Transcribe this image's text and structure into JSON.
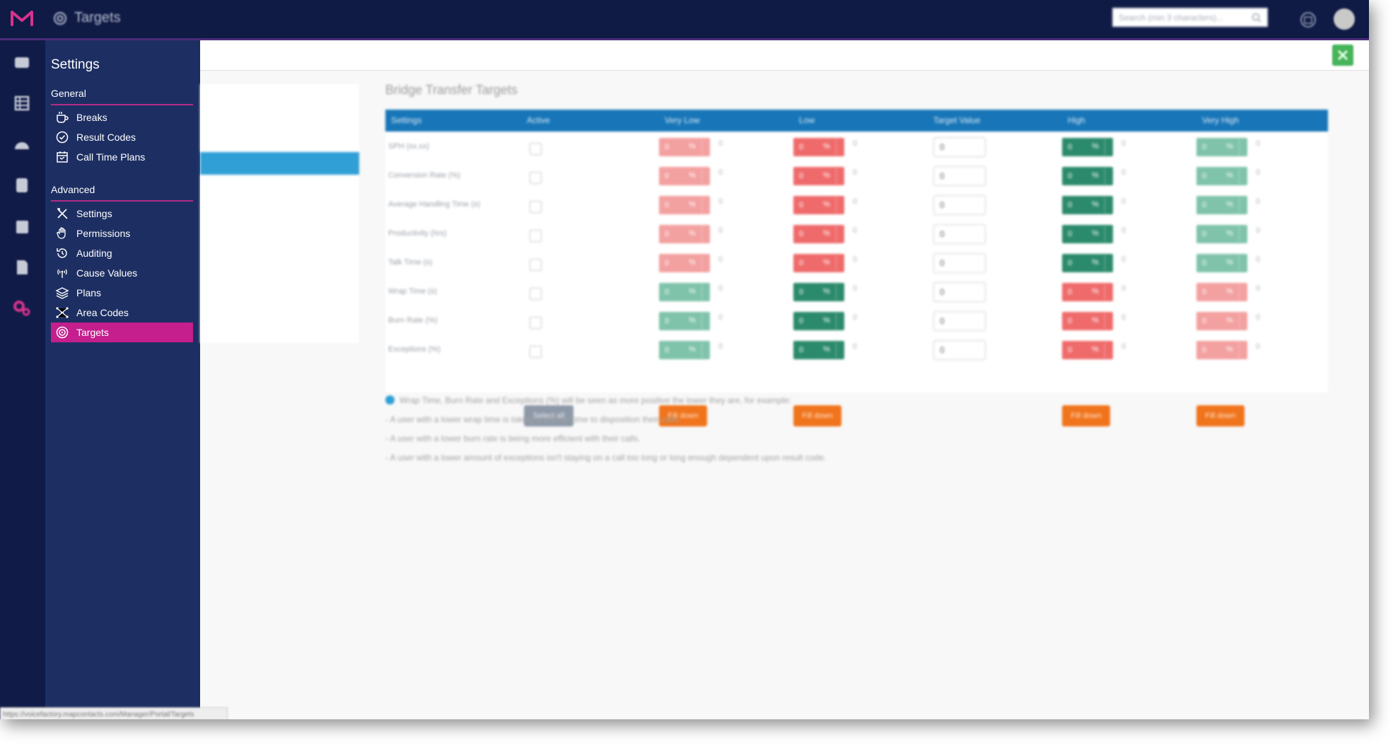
{
  "app": {
    "title": "Targets"
  },
  "search": {
    "placeholder": "Search (min 3 characters)..."
  },
  "sidebar": {
    "heading": "Settings",
    "sections": [
      {
        "label": "General",
        "items": [
          {
            "label": "Breaks",
            "icon": "coffee-cup-icon"
          },
          {
            "label": "Result Codes",
            "icon": "check-circle-icon"
          },
          {
            "label": "Call Time Plans",
            "icon": "calendar-icon"
          }
        ]
      },
      {
        "label": "Advanced",
        "items": [
          {
            "label": "Settings",
            "icon": "tools-icon"
          },
          {
            "label": "Permissions",
            "icon": "hand-icon"
          },
          {
            "label": "Auditing",
            "icon": "history-icon"
          },
          {
            "label": "Cause Values",
            "icon": "antenna-icon"
          },
          {
            "label": "Plans",
            "icon": "layers-icon"
          },
          {
            "label": "Area Codes",
            "icon": "network-icon"
          },
          {
            "label": "Targets",
            "icon": "target-icon",
            "active": true
          }
        ]
      }
    ]
  },
  "main": {
    "section_title": "Bridge Transfer Targets",
    "columns": [
      "Settings",
      "Active",
      "Very Low",
      "Low",
      "Target Value",
      "High",
      "Very High"
    ],
    "rows": [
      {
        "label": "SPH (xx.xx)",
        "low_color": "red"
      },
      {
        "label": "Conversion Rate (%)",
        "low_color": "red"
      },
      {
        "label": "Average Handling Time (s)",
        "low_color": "red"
      },
      {
        "label": "Productivity (hrs)",
        "low_color": "red"
      },
      {
        "label": "Talk Time (s)",
        "low_color": "red"
      },
      {
        "label": "Wrap Time (s)",
        "low_color": "green"
      },
      {
        "label": "Burn Rate (%)",
        "low_color": "green"
      },
      {
        "label": "Exceptions (%)",
        "low_color": "green"
      }
    ],
    "cell_value": "0",
    "cell_unit": "%",
    "target_value": "0",
    "select_all_label": "Select all",
    "fill_down_label": "Fill down",
    "notes": [
      "Wrap Time, Burn Rate and Exceptions (%) will be seen as more positive the lower they are, for example:",
      "- A user with a lower wrap time is taking a shorter time to disposition their calls.",
      "- A user with a lower burn rate is being more efficient with their calls.",
      "- A user with a lower amount of exceptions isn't staying on a call too long or long enough dependent upon result code."
    ]
  },
  "status_bar": {
    "url": "https://voicefactory.mapcontacts.com/Manager/Portal/Targets"
  },
  "colors": {
    "topbar": "#0f1a45",
    "sidebar": "#1d2f62",
    "accent_pink": "#c41f8d",
    "table_header": "#1876b8",
    "red_light": "#f3a0a0",
    "red": "#ef6b6b",
    "green_dark": "#2c8a6c",
    "green_light": "#7fc3aa",
    "orange": "#f0741c"
  }
}
